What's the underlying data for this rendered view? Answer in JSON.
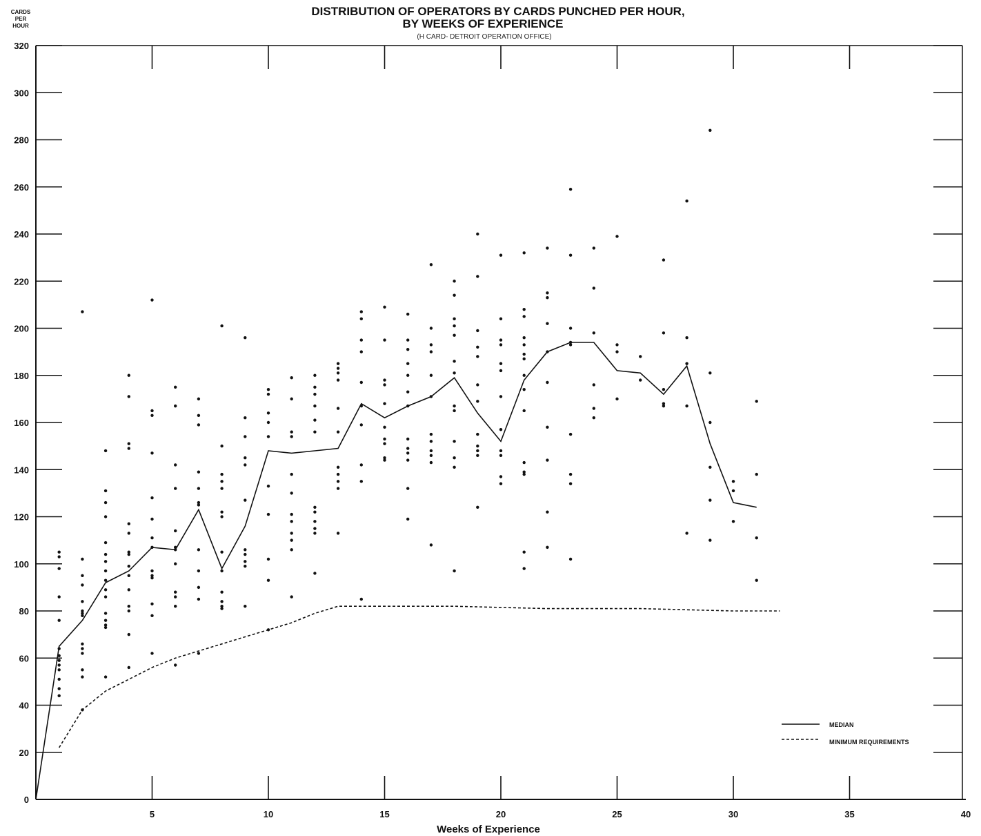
{
  "chart_data": {
    "type": "scatter",
    "title": "DISTRIBUTION OF OPERATORS BY CARDS PUNCHED PER HOUR,",
    "title_line2": "BY WEEKS OF EXPERIENCE",
    "subtitle": "(H CARD- DETROIT OPERATION OFFICE)",
    "ylabel_lines": [
      "CARDS",
      "PER",
      "HOUR"
    ],
    "xlabel": "Weeks of Experience",
    "xlim": [
      0,
      40
    ],
    "ylim": [
      0,
      320
    ],
    "x_ticks": [
      5,
      10,
      15,
      20,
      25,
      30,
      35,
      40
    ],
    "x_tick_labels": [
      "5",
      "10",
      "15",
      "20",
      "25",
      "30",
      "35",
      "40"
    ],
    "y_ticks": [
      0,
      20,
      40,
      60,
      80,
      100,
      120,
      140,
      160,
      180,
      200,
      220,
      240,
      260,
      280,
      300,
      320
    ],
    "y_tick_labels": [
      "0",
      "20",
      "40",
      "60",
      "80",
      "100",
      "120",
      "140",
      "160",
      "180",
      "200",
      "220",
      "240",
      "260",
      "280",
      "300",
      "320"
    ],
    "grid": false,
    "legend_position": "bottom-right",
    "series": [
      {
        "name": "MEDIAN",
        "style": "solid",
        "x": [
          0,
          1,
          2,
          3,
          4,
          5,
          6,
          7,
          8,
          9,
          10,
          11,
          12,
          13,
          14,
          15,
          16,
          17,
          18,
          19,
          20,
          21,
          22,
          23,
          24,
          25,
          26,
          27,
          28,
          29,
          30,
          31
        ],
        "y": [
          0,
          65,
          76,
          92,
          97,
          107,
          106,
          123,
          98,
          116,
          148,
          147,
          148,
          149,
          168,
          162,
          167,
          171,
          179,
          164,
          152,
          178,
          190,
          194,
          194,
          182,
          181,
          172,
          184,
          151,
          126,
          124
        ]
      },
      {
        "name": "MINIMUM REQUIREMENTS",
        "style": "dashed",
        "x": [
          1,
          2,
          3,
          4,
          5,
          6,
          7,
          8,
          9,
          10,
          11,
          12,
          13,
          14,
          18,
          22,
          26,
          30,
          32
        ],
        "y": [
          22,
          38,
          46,
          51,
          56,
          60,
          63,
          66,
          69,
          72,
          75,
          79,
          82,
          82,
          82,
          81,
          81,
          80,
          80
        ]
      }
    ],
    "observations": [
      {
        "x": 1,
        "y": [
          105,
          103,
          98,
          86,
          76,
          64,
          61,
          59,
          57,
          55,
          51,
          47,
          44
        ]
      },
      {
        "x": 2,
        "y": [
          207,
          102,
          95,
          91,
          84,
          80,
          79,
          78,
          66,
          64,
          62,
          55,
          52,
          38
        ]
      },
      {
        "x": 3,
        "y": [
          148,
          131,
          126,
          120,
          109,
          104,
          101,
          97,
          93,
          89,
          86,
          79,
          76,
          74,
          73,
          52
        ]
      },
      {
        "x": 4,
        "y": [
          180,
          171,
          151,
          149,
          117,
          113,
          105,
          104,
          99,
          95,
          89,
          82,
          80,
          70,
          56
        ]
      },
      {
        "x": 5,
        "y": [
          212,
          165,
          163,
          147,
          128,
          119,
          111,
          107,
          97,
          95,
          94,
          83,
          78,
          62
        ]
      },
      {
        "x": 6,
        "y": [
          175,
          167,
          142,
          132,
          114,
          107,
          106,
          100,
          88,
          86,
          82,
          57
        ]
      },
      {
        "x": 7,
        "y": [
          170,
          163,
          159,
          139,
          132,
          126,
          125,
          106,
          97,
          90,
          85,
          62
        ]
      },
      {
        "x": 8,
        "y": [
          201,
          150,
          138,
          135,
          132,
          122,
          120,
          105,
          97,
          88,
          84,
          82,
          81
        ]
      },
      {
        "x": 9,
        "y": [
          196,
          162,
          154,
          145,
          142,
          127,
          106,
          104,
          101,
          99,
          82
        ]
      },
      {
        "x": 10,
        "y": [
          174,
          172,
          164,
          160,
          154,
          133,
          121,
          102,
          93,
          72
        ]
      },
      {
        "x": 11,
        "y": [
          179,
          170,
          156,
          154,
          138,
          130,
          121,
          118,
          113,
          110,
          106,
          86
        ]
      },
      {
        "x": 12,
        "y": [
          180,
          175,
          172,
          167,
          161,
          156,
          124,
          122,
          118,
          115,
          113,
          96
        ]
      },
      {
        "x": 13,
        "y": [
          185,
          183,
          181,
          178,
          166,
          156,
          141,
          138,
          135,
          132,
          113
        ]
      },
      {
        "x": 14,
        "y": [
          207,
          204,
          195,
          190,
          177,
          167,
          159,
          142,
          135,
          85
        ]
      },
      {
        "x": 15,
        "y": [
          209,
          195,
          178,
          176,
          168,
          158,
          153,
          151,
          145,
          144
        ]
      },
      {
        "x": 16,
        "y": [
          206,
          195,
          191,
          185,
          180,
          173,
          167,
          153,
          149,
          147,
          144,
          132,
          119
        ]
      },
      {
        "x": 17,
        "y": [
          227,
          200,
          193,
          190,
          180,
          171,
          155,
          152,
          148,
          146,
          143,
          108
        ]
      },
      {
        "x": 18,
        "y": [
          220,
          214,
          204,
          201,
          197,
          186,
          181,
          167,
          165,
          152,
          145,
          141,
          97
        ]
      },
      {
        "x": 19,
        "y": [
          240,
          222,
          199,
          192,
          188,
          176,
          169,
          155,
          150,
          148,
          146,
          124
        ]
      },
      {
        "x": 20,
        "y": [
          231,
          204,
          195,
          193,
          185,
          182,
          171,
          157,
          148,
          146,
          137,
          134
        ]
      },
      {
        "x": 21,
        "y": [
          232,
          208,
          205,
          196,
          193,
          189,
          187,
          180,
          174,
          165,
          143,
          139,
          138,
          105,
          98
        ]
      },
      {
        "x": 22,
        "y": [
          234,
          215,
          213,
          202,
          190,
          177,
          158,
          144,
          122,
          107
        ]
      },
      {
        "x": 23,
        "y": [
          259,
          231,
          200,
          194,
          193,
          155,
          138,
          134,
          102
        ]
      },
      {
        "x": 24,
        "y": [
          234,
          217,
          198,
          176,
          166,
          162
        ]
      },
      {
        "x": 25,
        "y": [
          239,
          193,
          190,
          170
        ]
      },
      {
        "x": 26,
        "y": [
          188,
          178
        ]
      },
      {
        "x": 27,
        "y": [
          229,
          198,
          174,
          168,
          167
        ]
      },
      {
        "x": 28,
        "y": [
          254,
          196,
          185,
          167,
          113
        ]
      },
      {
        "x": 29,
        "y": [
          284,
          181,
          160,
          141,
          127,
          110
        ]
      },
      {
        "x": 30,
        "y": [
          135,
          131,
          118
        ]
      },
      {
        "x": 31,
        "y": [
          169,
          138,
          111,
          93
        ]
      }
    ]
  }
}
